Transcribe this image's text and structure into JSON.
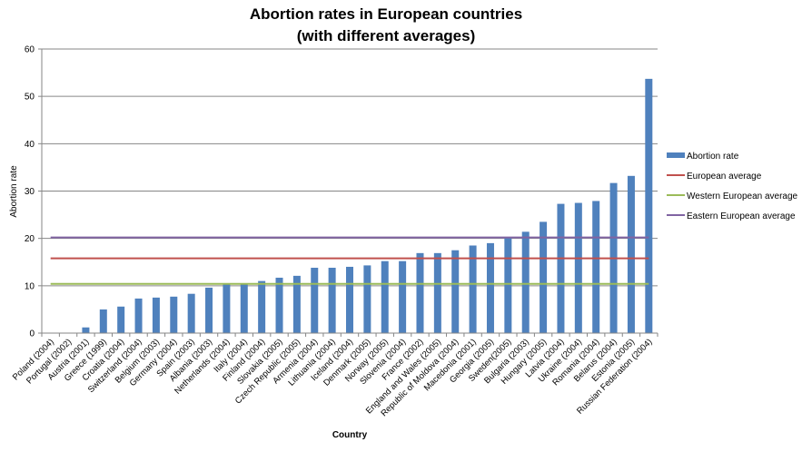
{
  "chart_data": {
    "type": "bar",
    "title": "Abortion rates in European countries",
    "subtitle": "(with different averages)",
    "xlabel": "Country",
    "ylabel": "Abortion rate",
    "ylim": [
      0,
      60
    ],
    "yticks": [
      0,
      10,
      20,
      30,
      40,
      50,
      60
    ],
    "grid": true,
    "legend_position": "right",
    "categories": [
      "Poland (2004)",
      "Portugal (2002)",
      "Austria (2001)",
      "Greece (1999)",
      "Croatia (2004)",
      "Switzerland (2004)",
      "Belgium (2003)",
      "Germany (2004)",
      "Spain (2003)",
      "Albania (2003)",
      "Netherlands (2004)",
      "Italy (2004)",
      "Finland (2004)",
      "Slovakia (2005)",
      "Czech Republic (2005)",
      "Armenia (2004)",
      "Lithuania (2004)",
      "Iceland (2004)",
      "Denmark (2005)",
      "Norway (2005)",
      "Slovenia (2004)",
      "France (2002)",
      "England and Wales (2005)",
      "Republic of Moldova (2004)",
      "Macedonia (2001)",
      "Georgia (2005)",
      "Sweden(2005)",
      "Bulgaria (2003)",
      "Hungary (2005)",
      "Latvia (2004)",
      "Ukraine (2004)",
      "Romania (2004)",
      "Belarus (2004)",
      "Estonia (2005)",
      "Russian Federation (2004)"
    ],
    "series": [
      {
        "name": "Abortion rate",
        "type": "bar",
        "color": "#4f81bd",
        "values": [
          0,
          0,
          1.2,
          5.0,
          5.6,
          7.3,
          7.5,
          7.7,
          8.3,
          9.6,
          10.3,
          10.4,
          11.0,
          11.7,
          12.1,
          13.8,
          13.8,
          14.0,
          14.3,
          15.2,
          15.2,
          16.9,
          16.9,
          17.5,
          18.5,
          19.0,
          20.1,
          21.4,
          23.5,
          27.3,
          27.5,
          27.9,
          31.7,
          33.2,
          53.7
        ]
      },
      {
        "name": "European average",
        "type": "line",
        "color": "#c0504d",
        "value": 15.8
      },
      {
        "name": "Western European average",
        "type": "line",
        "color": "#9bbb59",
        "value": 10.4
      },
      {
        "name": "Eastern European average",
        "type": "line",
        "color": "#8064a2",
        "value": 20.2
      }
    ]
  }
}
